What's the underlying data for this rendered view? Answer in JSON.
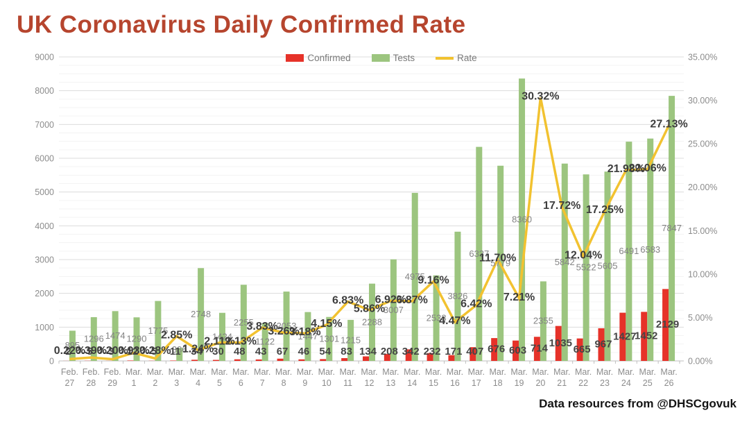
{
  "title": "UK Coronavirus Daily Confirmed Rate",
  "attribution": "Data resources from @DHSCgovuk",
  "legend": {
    "items": [
      {
        "label": "Confirmed",
        "color": "#e63229",
        "type": "bar"
      },
      {
        "label": "Tests",
        "color": "#9cc57f",
        "type": "bar"
      },
      {
        "label": "Rate",
        "color": "#f2c230",
        "type": "line"
      }
    ]
  },
  "chart_data": {
    "type": "bar",
    "subtype": "combo-bar-line",
    "title": "UK Coronavirus Daily Confirmed Rate",
    "grid": true,
    "legend_position": "top",
    "categories": [
      "Feb. 27",
      "Feb. 28",
      "Feb. 29",
      "Mar. 1",
      "Mar. 2",
      "Mar. 3",
      "Mar. 4",
      "Mar. 5",
      "Mar. 6",
      "Mar. 7",
      "Mar. 8",
      "Mar. 9",
      "Mar. 10",
      "Mar. 11",
      "Mar. 12",
      "Mar. 13",
      "Mar. 14",
      "Mar. 15",
      "Mar. 16",
      "Mar. 17",
      "Mar. 18",
      "Mar. 19",
      "Mar. 20",
      "Mar. 21",
      "Mar. 22",
      "Mar. 23",
      "Mar. 24",
      "Mar. 25",
      "Mar. 26"
    ],
    "series": [
      {
        "name": "Confirmed",
        "type": "bar",
        "axis": "left",
        "color": "#e63229",
        "values": [
          2,
          5,
          3,
          12,
          5,
          11,
          34,
          30,
          48,
          43,
          67,
          46,
          54,
          83,
          134,
          208,
          342,
          232,
          171,
          407,
          676,
          603,
          714,
          1035,
          665,
          967,
          1427,
          1452,
          2129
        ]
      },
      {
        "name": "Tests",
        "type": "bar",
        "axis": "left",
        "color": "#9cc57f",
        "values": [
          895,
          1296,
          1474,
          1290,
          1775,
          386,
          2748,
          1424,
          2255,
          1122,
          2053,
          1447,
          1301,
          1215,
          2288,
          3007,
          4975,
          2533,
          3826,
          6337,
          5779,
          8360,
          2355,
          5842,
          5522,
          5605,
          6491,
          6583,
          7847
        ]
      },
      {
        "name": "Rate",
        "type": "line",
        "axis": "right",
        "color": "#f2c230",
        "values_pct": [
          0.22,
          0.39,
          0.2,
          0.93,
          0.28,
          2.85,
          1.24,
          2.11,
          2.13,
          3.83,
          3.26,
          3.18,
          4.15,
          6.83,
          5.86,
          6.92,
          6.87,
          9.16,
          4.47,
          6.42,
          11.7,
          7.21,
          30.32,
          17.72,
          12.04,
          17.25,
          21.98,
          22.06,
          27.13
        ],
        "labels": [
          "0.22%",
          "0.39%",
          "0.20%",
          "0.93%",
          "0.28%",
          "2.85%",
          "1.24%",
          "2.11%",
          "2.13%",
          "3.83%",
          "3.26%",
          "3.18%",
          "4.15%",
          "6.83%",
          "5.86%",
          "6.92%",
          "6.87%",
          "9.16%",
          "4.47%",
          "6.42%",
          "11.70%",
          "7.21%",
          "30.32%",
          "17.72%",
          "12.04%",
          "17.25%",
          "21.98%",
          "22.06%",
          "27.13%"
        ]
      }
    ],
    "left_axis": {
      "min": 0,
      "max": 9000,
      "step": 1000,
      "ticks": [
        "0",
        "1000",
        "2000",
        "3000",
        "4000",
        "5000",
        "6000",
        "7000",
        "8000",
        "9000"
      ]
    },
    "right_axis": {
      "min": 0,
      "max": 35,
      "step": 5,
      "ticks": [
        "0.00%",
        "5.00%",
        "10.00%",
        "15.00%",
        "20.00%",
        "25.00%",
        "30.00%",
        "35.00%"
      ]
    }
  }
}
